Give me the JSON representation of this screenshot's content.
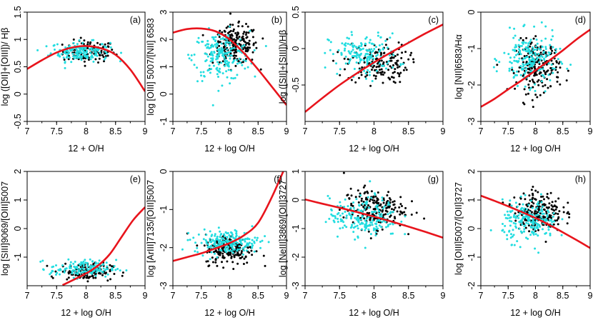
{
  "chart_data": [
    {
      "type": "scatter",
      "panel": "(a)",
      "xlabel": "12 + O/H",
      "ylabel": "log ([OII]+[OIII])/ Hβ",
      "xlim": [
        7,
        9
      ],
      "ylim": [
        -0.5,
        1.5
      ],
      "xticks": [
        "7",
        "7.5",
        "8",
        "8.5",
        "9"
      ],
      "yticks": [
        "-0.5",
        "0",
        "0.5",
        "1",
        "1.5"
      ],
      "black_cloud": {
        "center": [
          8.05,
          0.78
        ],
        "spread": [
          0.22,
          0.1
        ],
        "count": 120
      },
      "cyan_cloud": {
        "center": [
          7.9,
          0.78
        ],
        "spread": [
          0.25,
          0.09
        ],
        "count": 160
      },
      "model_curve": {
        "x": [
          7,
          7.25,
          7.5,
          7.75,
          8,
          8.25,
          8.5,
          8.75,
          9
        ],
        "y": [
          0.46,
          0.62,
          0.76,
          0.85,
          0.88,
          0.84,
          0.72,
          0.45,
          0.05
        ]
      }
    },
    {
      "type": "scatter",
      "panel": "(b)",
      "xlabel": "12 + log O/H",
      "ylabel": "log [OIII] 5007/[NII] 6583",
      "xlim": [
        7,
        9
      ],
      "ylim": [
        -1,
        3
      ],
      "xticks": [
        "7",
        "7.5",
        "8",
        "8.5",
        "9"
      ],
      "yticks": [
        "-1",
        "0",
        "1",
        "2",
        "3"
      ],
      "black_cloud": {
        "center": [
          8.1,
          1.8
        ],
        "spread": [
          0.2,
          0.35
        ],
        "count": 200
      },
      "cyan_cloud": {
        "center": [
          7.85,
          1.4
        ],
        "spread": [
          0.25,
          0.45
        ],
        "count": 200
      },
      "model_curve": {
        "x": [
          7,
          7.25,
          7.5,
          7.75,
          8,
          8.25,
          8.5,
          8.75,
          9
        ],
        "y": [
          2.25,
          2.38,
          2.4,
          2.3,
          2.0,
          1.5,
          0.9,
          0.25,
          -0.4
        ]
      }
    },
    {
      "type": "scatter",
      "panel": "(c)",
      "xlabel": "12 + log O/H",
      "ylabel": "log ([SII]+[SIII])/Hβ",
      "xlim": [
        7,
        9
      ],
      "ylim": [
        -1,
        0.5
      ],
      "xticks": [
        "7",
        "7.5",
        "8",
        "8.5",
        "9"
      ],
      "yticks": [
        "-0.5",
        "0",
        "0.5"
      ],
      "black_cloud": {
        "center": [
          8.05,
          -0.2
        ],
        "spread": [
          0.22,
          0.14
        ],
        "count": 160
      },
      "cyan_cloud": {
        "center": [
          7.85,
          -0.08
        ],
        "spread": [
          0.25,
          0.14
        ],
        "count": 160
      },
      "model_curve": {
        "x": [
          7,
          7.25,
          7.5,
          7.75,
          8,
          8.25,
          8.5,
          8.75,
          9
        ],
        "y": [
          -0.87,
          -0.68,
          -0.5,
          -0.34,
          -0.19,
          -0.05,
          0.08,
          0.21,
          0.33
        ]
      }
    },
    {
      "type": "scatter",
      "panel": "(d)",
      "xlabel": "12 + log O/H",
      "ylabel": "log [NII]6583/Hα",
      "xlim": [
        7,
        9
      ],
      "ylim": [
        -3,
        0
      ],
      "xticks": [
        "7",
        "7.5",
        "8",
        "8.5",
        "9"
      ],
      "yticks": [
        "-3",
        "-2",
        "-1",
        "0"
      ],
      "black_cloud": {
        "center": [
          8.05,
          -1.5
        ],
        "spread": [
          0.2,
          0.35
        ],
        "count": 200
      },
      "cyan_cloud": {
        "center": [
          7.9,
          -1.3
        ],
        "spread": [
          0.25,
          0.35
        ],
        "count": 200
      },
      "model_curve": {
        "x": [
          7,
          7.25,
          7.5,
          7.75,
          8,
          8.25,
          8.5,
          8.75,
          9
        ],
        "y": [
          -2.6,
          -2.38,
          -2.12,
          -1.87,
          -1.6,
          -1.33,
          -1.05,
          -0.75,
          -0.48
        ]
      }
    },
    {
      "type": "scatter",
      "panel": "(e)",
      "xlabel": "12 + log O/H",
      "ylabel": "log [SIII]9069/[OIII]5007",
      "xlim": [
        7,
        9
      ],
      "ylim": [
        -2,
        2
      ],
      "xticks": [
        "7",
        "7.5",
        "8",
        "8.5",
        "9"
      ],
      "yticks": [
        "-1",
        "0",
        "1",
        "2"
      ],
      "black_cloud": {
        "center": [
          8.0,
          -1.5
        ],
        "spread": [
          0.22,
          0.15
        ],
        "count": 140
      },
      "cyan_cloud": {
        "center": [
          7.95,
          -1.4
        ],
        "spread": [
          0.28,
          0.15
        ],
        "count": 140
      },
      "model_curve": {
        "x": [
          7.6,
          7.8,
          8,
          8.2,
          8.4,
          8.6,
          8.8,
          9
        ],
        "y": [
          -1.98,
          -1.78,
          -1.57,
          -1.3,
          -0.9,
          -0.3,
          0.3,
          0.75
        ]
      }
    },
    {
      "type": "scatter",
      "panel": "(f)",
      "xlabel": "12 + log O/H",
      "ylabel": "log [ArIII]7135/[OIII]5007",
      "xlim": [
        7,
        9
      ],
      "ylim": [
        -3,
        0
      ],
      "xticks": [
        "7",
        "7.5",
        "8",
        "8.5",
        "9"
      ],
      "yticks": [
        "-3",
        "-2",
        "-1",
        "0"
      ],
      "black_cloud": {
        "center": [
          8.0,
          -2.05
        ],
        "spread": [
          0.22,
          0.2
        ],
        "count": 180
      },
      "cyan_cloud": {
        "center": [
          7.95,
          -1.85
        ],
        "spread": [
          0.28,
          0.15
        ],
        "count": 200
      },
      "model_curve": {
        "x": [
          7,
          7.25,
          7.5,
          7.75,
          8,
          8.25,
          8.5,
          8.75,
          9
        ],
        "y": [
          -2.35,
          -2.25,
          -2.15,
          -2.02,
          -1.88,
          -1.68,
          -1.35,
          -0.65,
          0.2
        ]
      }
    },
    {
      "type": "scatter",
      "panel": "(g)",
      "xlabel": "12 + log O/H",
      "ylabel": "log [NeIII]3869/[OII]3727",
      "xlim": [
        7,
        9
      ],
      "ylim": [
        -3,
        1
      ],
      "xticks": [
        "7",
        "7.5",
        "8",
        "8.5",
        "9"
      ],
      "yticks": [
        "-3",
        "-2",
        "-1",
        "0",
        "1"
      ],
      "black_cloud": {
        "center": [
          8.0,
          -0.3
        ],
        "spread": [
          0.22,
          0.35
        ],
        "count": 200
      },
      "cyan_cloud": {
        "center": [
          7.85,
          -0.6
        ],
        "spread": [
          0.25,
          0.35
        ],
        "count": 200
      },
      "model_curve": {
        "x": [
          7,
          7.25,
          7.5,
          7.75,
          8,
          8.25,
          8.5,
          8.75,
          9
        ],
        "y": [
          0.02,
          -0.13,
          -0.27,
          -0.42,
          -0.58,
          -0.75,
          -0.93,
          -1.12,
          -1.32
        ]
      }
    },
    {
      "type": "scatter",
      "panel": "(h)",
      "xlabel": "12 + log O/H",
      "ylabel": "log [OIII]5007/[OII]3727",
      "xlim": [
        7,
        9
      ],
      "ylim": [
        -2,
        2
      ],
      "xticks": [
        "7",
        "7.5",
        "8",
        "8.5",
        "9"
      ],
      "yticks": [
        "-2",
        "-1",
        "0",
        "1",
        "2"
      ],
      "black_cloud": {
        "center": [
          8.05,
          0.6
        ],
        "spread": [
          0.22,
          0.35
        ],
        "count": 200
      },
      "cyan_cloud": {
        "center": [
          7.9,
          0.25
        ],
        "spread": [
          0.25,
          0.35
        ],
        "count": 200
      },
      "model_curve": {
        "x": [
          7,
          7.25,
          7.5,
          7.75,
          8,
          8.25,
          8.5,
          8.75,
          9
        ],
        "y": [
          1.15,
          0.97,
          0.78,
          0.58,
          0.37,
          0.13,
          -0.13,
          -0.4,
          -0.68
        ]
      }
    }
  ],
  "colors": {
    "black_points": "#000000",
    "cyan_points": "#22dde0",
    "model_curve": "#e8141c",
    "axes": "#000000"
  }
}
